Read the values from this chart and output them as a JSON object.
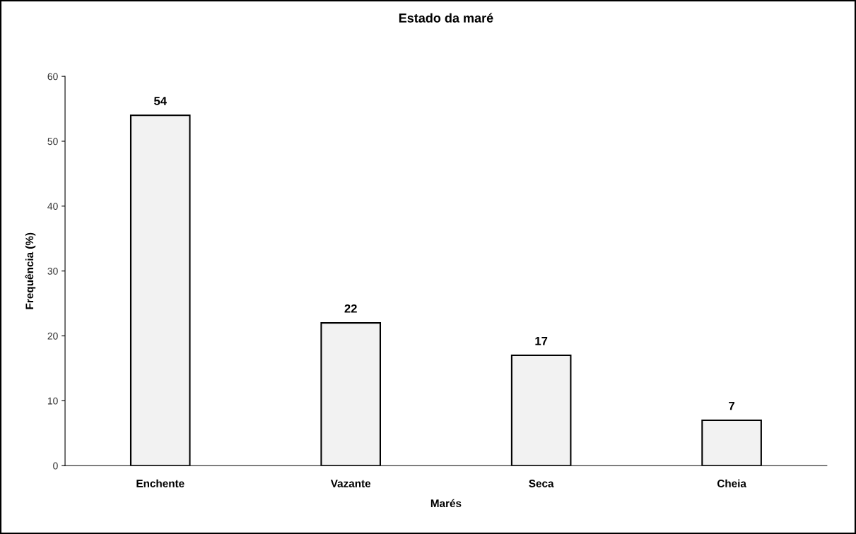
{
  "chart_data": {
    "type": "bar",
    "title": "Estado da maré",
    "xlabel": "Marés",
    "ylabel": "Frequência (%)",
    "categories": [
      "Enchente",
      "Vazante",
      "Seca",
      "Cheia"
    ],
    "values": [
      54,
      22,
      17,
      7
    ],
    "color": "#f2f2f2",
    "ylim": [
      0,
      60
    ],
    "yticks": [
      0,
      10,
      20,
      30,
      40,
      50,
      60
    ],
    "grid": false,
    "legend": false,
    "data_labels": true
  }
}
